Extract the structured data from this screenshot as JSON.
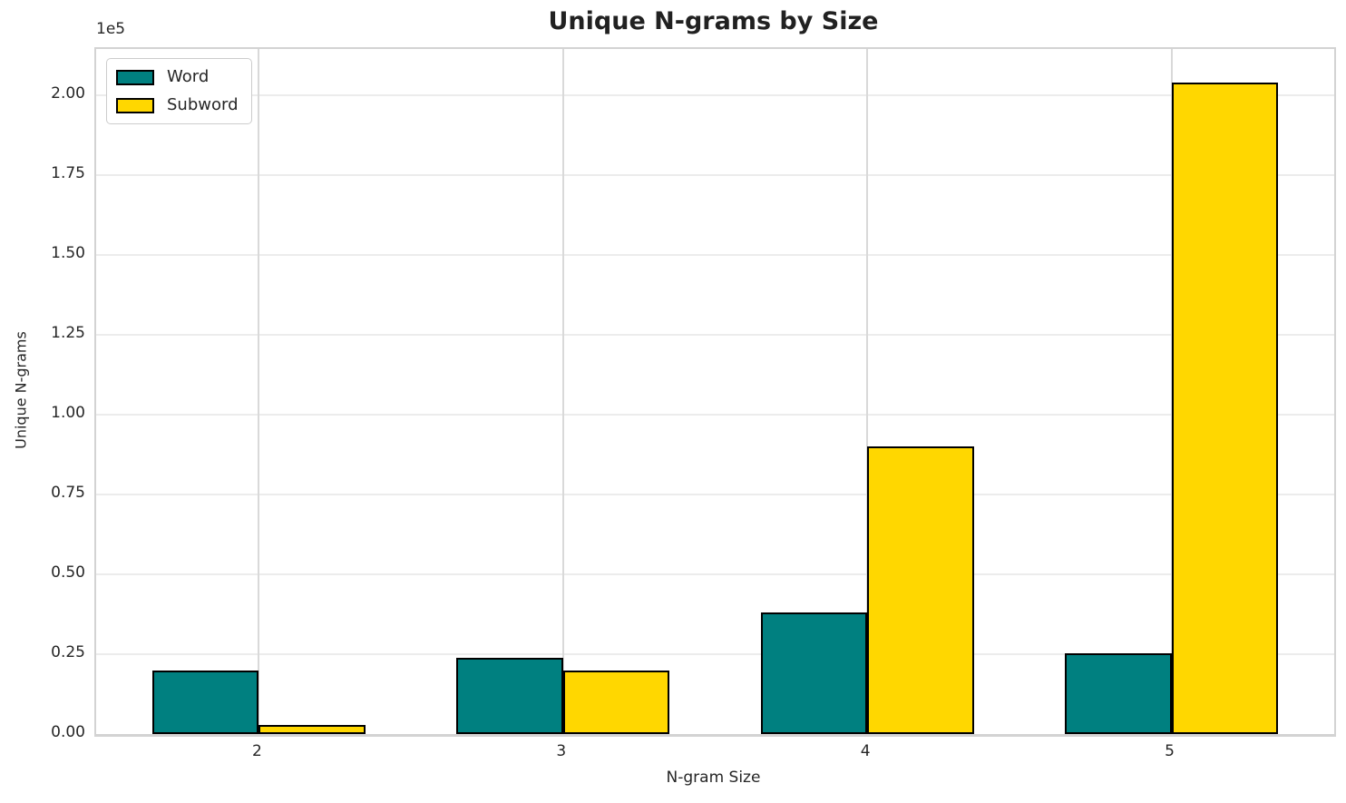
{
  "title": "Unique N-grams by Size",
  "axes": {
    "x_label": "N-gram Size",
    "y_label": "Unique N-grams",
    "offset_text": "1e5",
    "x_ticks": [
      "2",
      "3",
      "4",
      "5"
    ],
    "y_ticks": [
      "0.00",
      "0.25",
      "0.50",
      "0.75",
      "1.00",
      "1.25",
      "1.50",
      "1.75",
      "2.00"
    ]
  },
  "legend": {
    "items": [
      {
        "label": "Word",
        "color": "#008080"
      },
      {
        "label": "Subword",
        "color": "#FFD700"
      }
    ]
  },
  "colors": {
    "word_bar": "#008080",
    "subword_bar": "#FFD700",
    "bar_edge": "#000000",
    "grid_horizontal": "#ececec",
    "grid_vertical": "#d9d9d9",
    "spine": "#d3d3d3",
    "text": "#262626",
    "background": "#ffffff"
  },
  "chart_data": {
    "type": "bar",
    "title": "Unique N-grams by Size",
    "xlabel": "N-gram Size",
    "ylabel": "Unique N-grams",
    "categories": [
      "2",
      "3",
      "4",
      "5"
    ],
    "series": [
      {
        "name": "Word",
        "color": "#008080",
        "values": [
          20000,
          24000,
          38000,
          25400
        ]
      },
      {
        "name": "Subword",
        "color": "#FFD700",
        "values": [
          2800,
          20000,
          90000,
          204000
        ]
      }
    ],
    "y_unit_multiplier": 100000,
    "y_tick_step": 25000,
    "ylim": [
      0,
      214500
    ],
    "xlim": [
      -0.535,
      3.535
    ],
    "bar_width_units": 0.35,
    "grid": true,
    "legend_position": "upper left"
  }
}
